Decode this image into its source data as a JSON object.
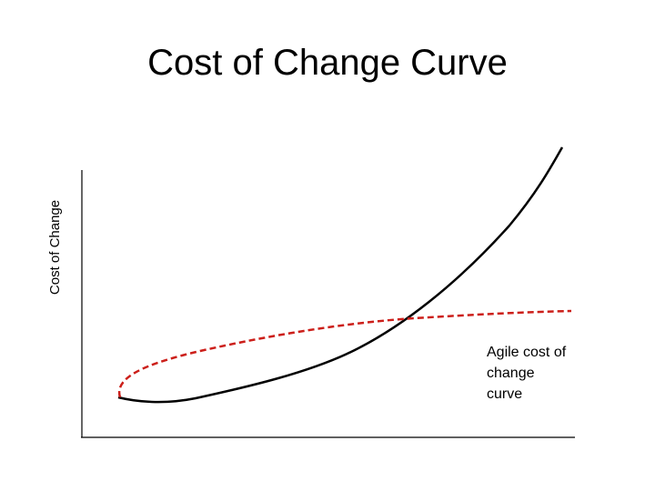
{
  "title": "Cost of Change Curve",
  "y_axis_label": "Cost of Change",
  "annotation": {
    "lines": [
      "Agile cost of",
      "change",
      "curve"
    ]
  }
}
